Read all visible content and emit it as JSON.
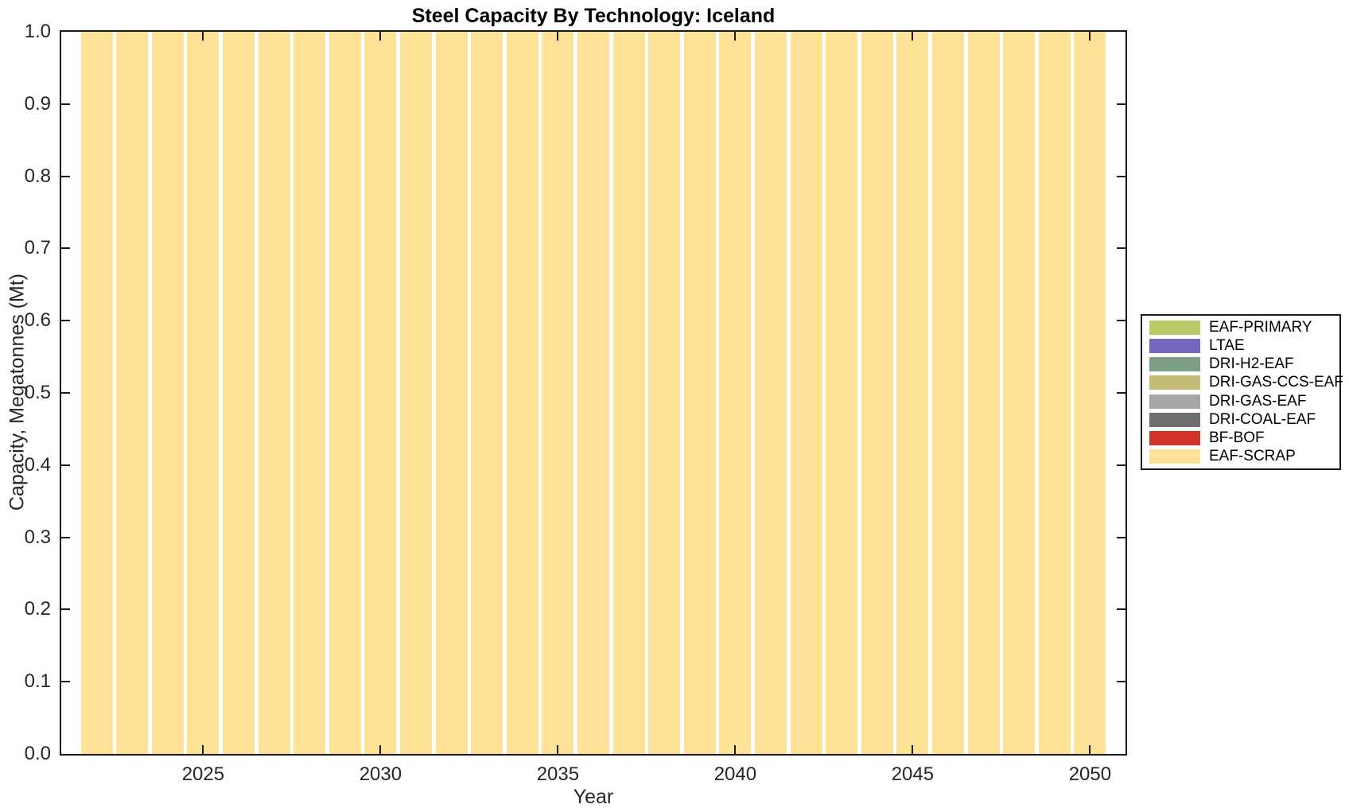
{
  "title": "Steel Capacity By Technology: Iceland",
  "chart_data": {
    "type": "bar",
    "title": "Steel Capacity By Technology: Iceland",
    "xlabel": "Year",
    "ylabel": "Capacity, Megatonnes (Mt)",
    "xlim": [
      2021,
      2051
    ],
    "ylim": [
      0.0,
      1.0
    ],
    "xticks": [
      2025,
      2030,
      2035,
      2040,
      2045,
      2050
    ],
    "yticks": [
      "0.0",
      "0.1",
      "0.2",
      "0.3",
      "0.4",
      "0.5",
      "0.6",
      "0.7",
      "0.8",
      "0.9",
      "1.0"
    ],
    "grid": false,
    "bar_width_fraction": 0.9,
    "x": [
      2022,
      2023,
      2024,
      2025,
      2026,
      2027,
      2028,
      2029,
      2030,
      2031,
      2032,
      2033,
      2034,
      2035,
      2036,
      2037,
      2038,
      2039,
      2040,
      2041,
      2042,
      2043,
      2044,
      2045,
      2046,
      2047,
      2048,
      2049,
      2050
    ],
    "series": [
      {
        "name": "EAF-SCRAP",
        "color": "#FCE196",
        "values": [
          1.0,
          1.0,
          1.0,
          1.0,
          1.0,
          1.0,
          1.0,
          1.0,
          1.0,
          1.0,
          1.0,
          1.0,
          1.0,
          1.0,
          1.0,
          1.0,
          1.0,
          1.0,
          1.0,
          1.0,
          1.0,
          1.0,
          1.0,
          1.0,
          1.0,
          1.0,
          1.0,
          1.0,
          1.0
        ]
      }
    ],
    "legend_position": "right-outside",
    "legend": [
      {
        "label": "EAF-PRIMARY",
        "color": "#BCC969"
      },
      {
        "label": "LTAE",
        "color": "#7468BE"
      },
      {
        "label": "DRI-H2-EAF",
        "color": "#7C9E85"
      },
      {
        "label": "DRI-GAS-CCS-EAF",
        "color": "#C5BD77"
      },
      {
        "label": "DRI-GAS-EAF",
        "color": "#A7A7A7"
      },
      {
        "label": "DRI-COAL-EAF",
        "color": "#6F6F6F"
      },
      {
        "label": "BF-BOF",
        "color": "#D1342B"
      },
      {
        "label": "EAF-SCRAP",
        "color": "#FCE196"
      }
    ],
    "axis_color": "#1a1a1a"
  }
}
